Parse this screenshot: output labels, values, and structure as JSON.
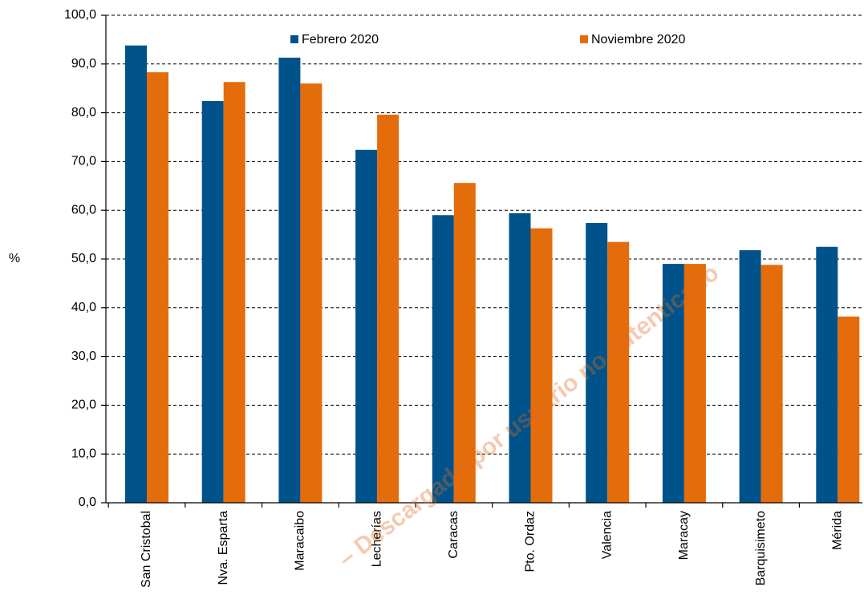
{
  "chart_data": {
    "type": "bar",
    "ylabel": "%",
    "watermark": "– Descargado por usuario no autenticado",
    "categories": [
      "San Cristobal",
      "Nva. Esparta",
      "Maracaibo",
      "Lecherías",
      "Caracas",
      "Pto. Ordaz",
      "Valencia",
      "Maracay",
      "Barquisimeto",
      "Mérida"
    ],
    "series": [
      {
        "name": "Febrero 2020",
        "color": "#00538a",
        "values": [
          93.8,
          82.4,
          91.3,
          72.4,
          59.0,
          59.4,
          57.4,
          49.0,
          51.8,
          52.5
        ]
      },
      {
        "name": "Noviembre 2020",
        "color": "#e46c0a",
        "values": [
          88.3,
          86.3,
          86.0,
          79.6,
          65.6,
          56.3,
          53.5,
          49.0,
          48.8,
          38.2
        ]
      }
    ],
    "ylim": [
      0,
      100
    ],
    "yticks": [
      {
        "value": 0,
        "label": "0,0"
      },
      {
        "value": 10,
        "label": "10,0"
      },
      {
        "value": 20,
        "label": "20,0"
      },
      {
        "value": 30,
        "label": "30,0"
      },
      {
        "value": 40,
        "label": "40,0"
      },
      {
        "value": 50,
        "label": "50,0"
      },
      {
        "value": 60,
        "label": "60,0"
      },
      {
        "value": 70,
        "label": "70,0"
      },
      {
        "value": 80,
        "label": "80,0"
      },
      {
        "value": 90,
        "label": "90,0"
      },
      {
        "value": 100,
        "label": "100,0"
      }
    ],
    "grid": true
  }
}
